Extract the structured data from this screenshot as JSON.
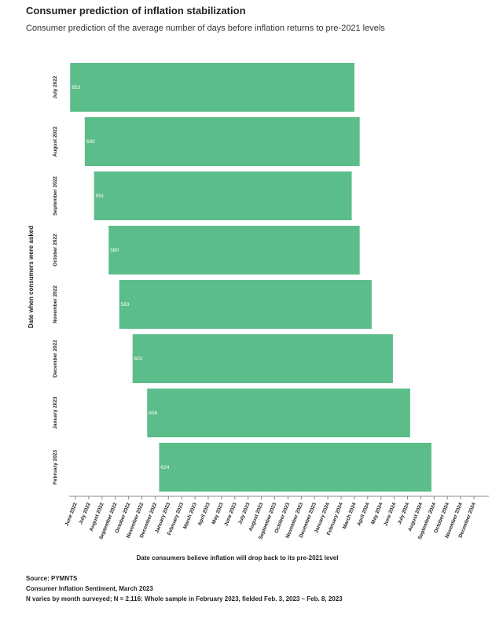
{
  "chart_data": {
    "type": "bar",
    "orientation": "horizontal-range",
    "title": "Consumer prediction of inflation stabilization",
    "subtitle": "Consumer prediction of the average number of days before inflation returns to pre-2021 levels",
    "xlabel": "Date consumers believe inflation will drop back to its pre-2021 level",
    "ylabel": "Date when consumers were asked",
    "x_ticks": [
      "June 2022",
      "July 2022",
      "August 2022",
      "September 2022",
      "October 2022",
      "November 2022",
      "December 2022",
      "January 2023",
      "February 2023",
      "March 2023",
      "April 2023",
      "May 2023",
      "June 2023",
      "July 2023",
      "August 2023",
      "September 2023",
      "October 2023",
      "November 2023",
      "December 2023",
      "January 2024",
      "February 2024",
      "March 2024",
      "April 2024",
      "May 2024",
      "June 2024",
      "July 2024",
      "August 2024",
      "September 2024",
      "October 2024",
      "November 2024",
      "December 2024"
    ],
    "categories": [
      "July 2022",
      "August 2022",
      "September 2022",
      "October 2022",
      "November 2022",
      "December 2022",
      "January 2023",
      "February 2023"
    ],
    "values": [
      653,
      630,
      591,
      580,
      583,
      601,
      606,
      624
    ],
    "bar_start": [
      -0.4,
      0.7,
      1.4,
      2.5,
      3.3,
      4.3,
      5.4,
      6.3
    ],
    "bar_end": [
      21.0,
      21.4,
      20.8,
      21.4,
      22.3,
      23.9,
      25.2,
      26.8
    ],
    "color": "#5bbd89"
  },
  "footer": {
    "source": "Source: PYMNTS",
    "report": "Consumer Inflation Sentiment, March 2023",
    "note": "N varies by month surveyed; N = 2,116: Whole sample in February 2023, fielded Feb. 3, 2023 – Feb. 8, 2023"
  }
}
